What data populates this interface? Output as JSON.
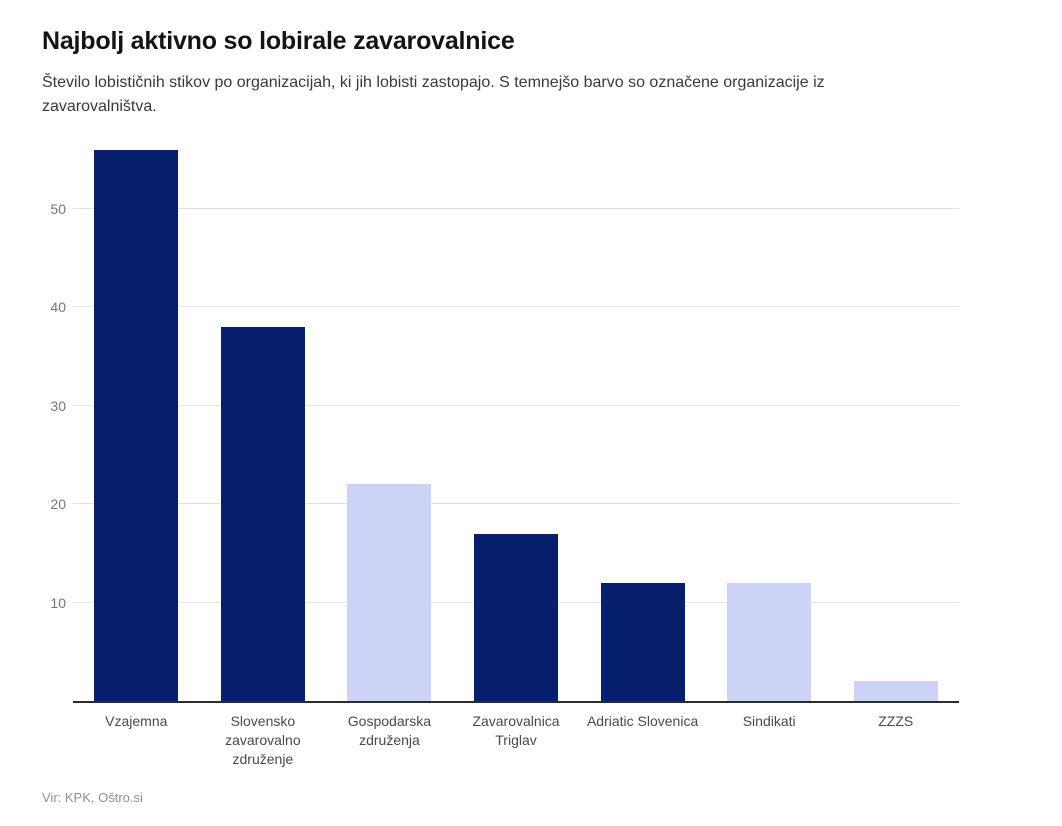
{
  "header": {
    "title": "Najbolj aktivno so lobirale zavarovalnice",
    "subtitle": "Število lobističnih stikov po organizacijah, ki jih lobisti zastopajo. S temnejšo barvo so označene organizacije iz zavarovalništva."
  },
  "footer": {
    "source": "Vir: KPK, Oštro.si"
  },
  "colors": {
    "insurance_bar": "#07206e",
    "other_bar": "#ccd3f6",
    "gridline": "#e1e1e1",
    "axis_line": "#2b2b2b",
    "y_tick_label": "#767676",
    "category_label": "#4a4a4a",
    "source_text": "#909090"
  },
  "chart_data": {
    "type": "bar",
    "title": "Najbolj aktivno so lobirale zavarovalnice",
    "subtitle": "Število lobističnih stikov po organizacijah, ki jih lobisti zastopajo. S temnejšo barvo so označene organizacije iz zavarovalništva.",
    "categories": [
      "Vzajemna",
      "Slovensko zavarovalno združenje",
      "Gospodarska združenja",
      "Zavarovalnica Triglav",
      "Adriatic Slovenica",
      "Sindikati",
      "ZZZS"
    ],
    "values": [
      56,
      38,
      22,
      17,
      12,
      12,
      2
    ],
    "is_insurance_highlighted": [
      true,
      true,
      false,
      true,
      true,
      false,
      false
    ],
    "xlabel": "",
    "ylabel": "",
    "y_ticks": [
      10,
      20,
      30,
      40,
      50
    ],
    "ylim": [
      0,
      57.2
    ],
    "grid": "horizontal-only",
    "legend": "none",
    "source": "Vir: KPK, Oštro.si"
  }
}
